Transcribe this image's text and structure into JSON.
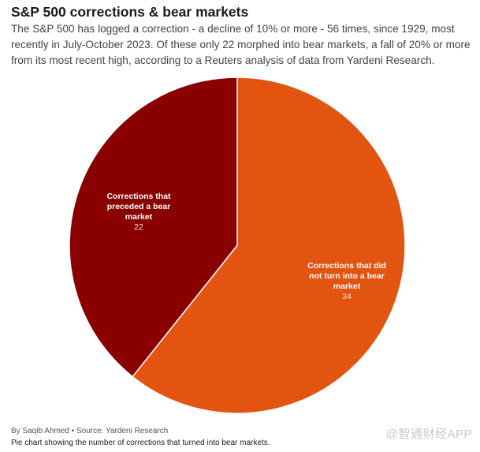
{
  "chart_data": {
    "type": "pie",
    "title": "S&P 500 corrections & bear markets",
    "subtitle": "The S&P 500 has logged a correction - a decline of 10% or more - 56 times, since 1929, most recently in July-October 2023. Of these only 22 morphed into bear markets, a fall of 20% or more from its most recent high, according to a Reuters analysis of data from Yardeni Research.",
    "slices": [
      {
        "label_lines": [
          "Corrections that did",
          "not turn into a bear",
          "market"
        ],
        "value": 34,
        "color": "#e35410"
      },
      {
        "label_lines": [
          "Corrections that",
          "preceded a bear",
          "market"
        ],
        "value": 22,
        "color": "#8a0000"
      }
    ]
  },
  "footer": {
    "byline": "By Saqib Ahmed • Source: Yardeni Research",
    "caption": "Pie chart showing the number of corrections that turned into bear markets."
  },
  "watermark": "@智通财经APP"
}
